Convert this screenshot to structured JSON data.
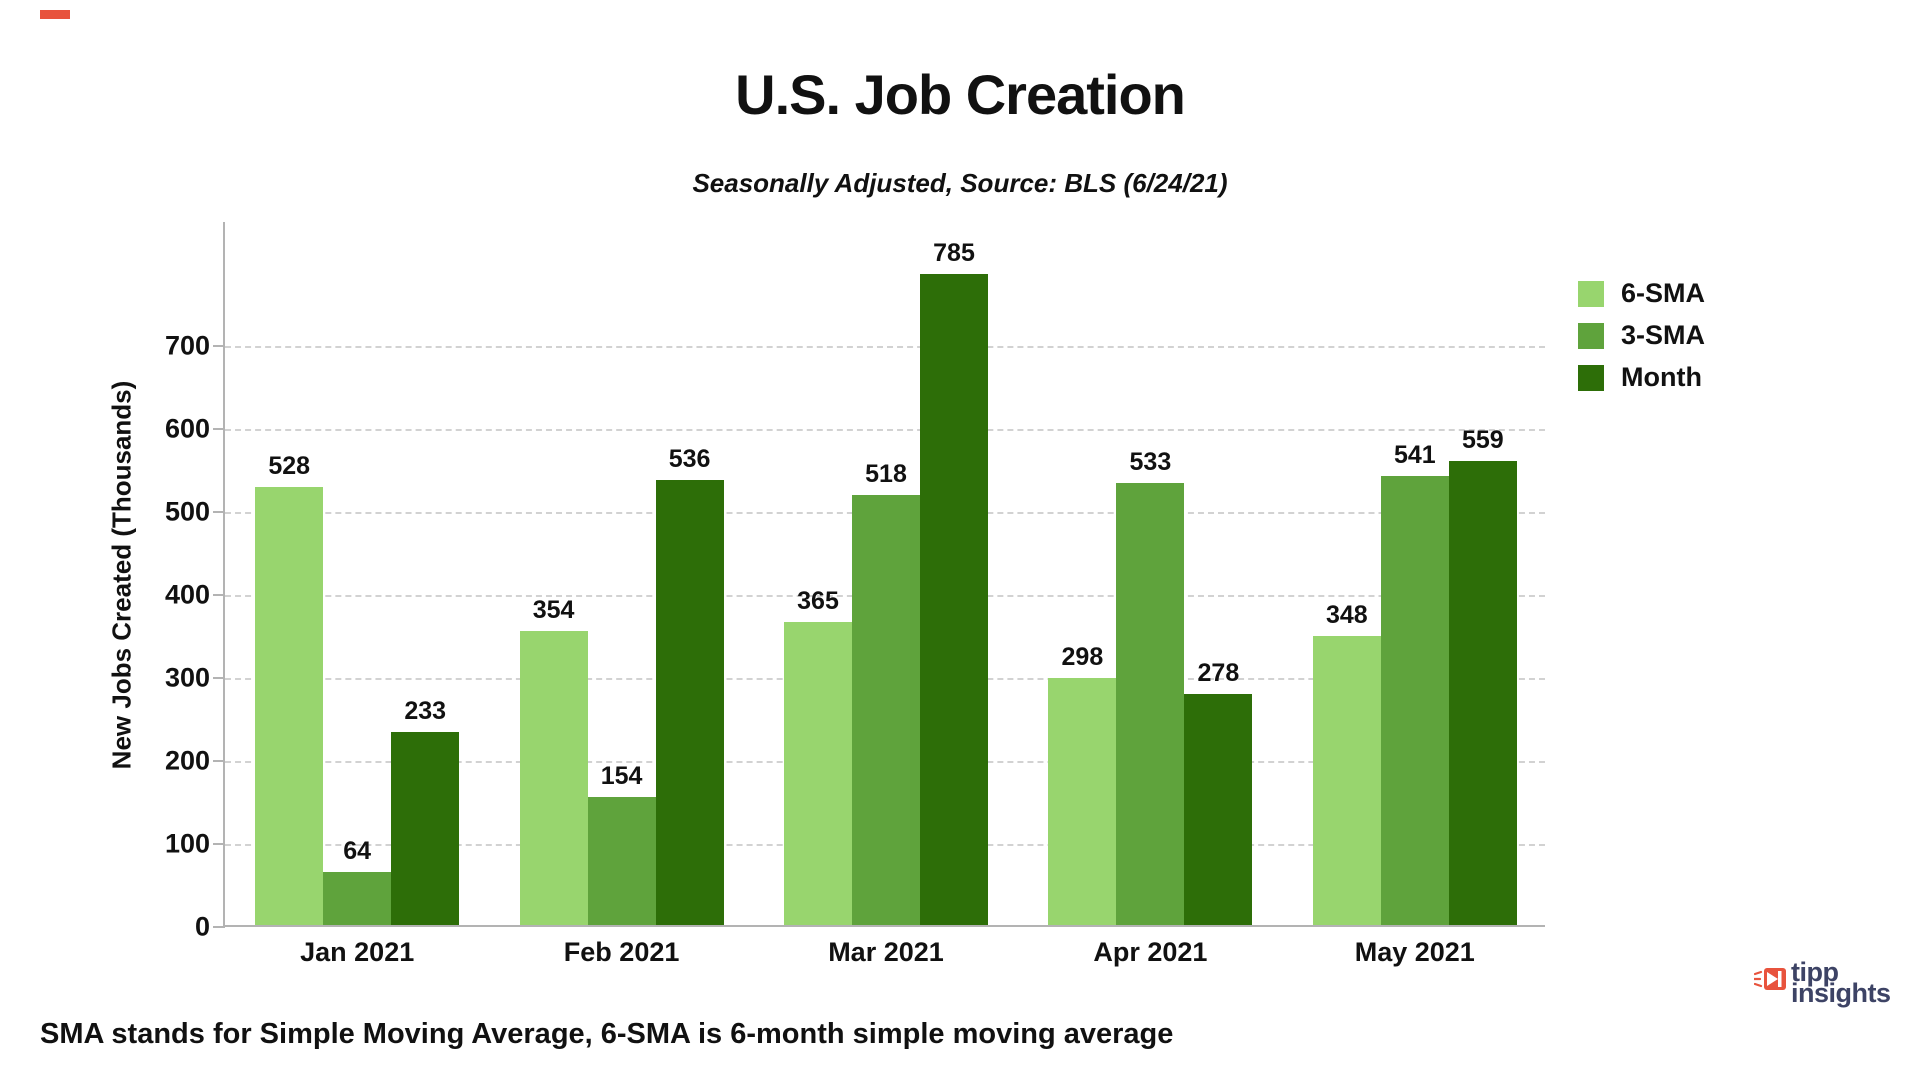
{
  "header": {
    "title": "U.S. Job Creation",
    "subtitle": "Seasonally Adjusted, Source: BLS (6/24/21)"
  },
  "footer": {
    "note": "SMA stands for Simple Moving Average, 6-SMA is 6-month simple moving average"
  },
  "branding": {
    "logo_line1": "tipp",
    "logo_line2": "insights",
    "navy": "#3d4365",
    "red": "#e8533d"
  },
  "chart_data": {
    "type": "bar",
    "title": "U.S. Job Creation",
    "subtitle": "Seasonally Adjusted, Source: BLS (6/24/21)",
    "categories": [
      "Jan 2021",
      "Feb 2021",
      "Mar 2021",
      "Apr 2021",
      "May 2021"
    ],
    "series": [
      {
        "name": "6-SMA",
        "color": "#98d56e",
        "values": [
          528,
          354,
          365,
          298,
          348
        ]
      },
      {
        "name": "3-SMA",
        "color": "#5fa33c",
        "values": [
          64,
          154,
          518,
          533,
          541
        ]
      },
      {
        "name": "Month",
        "color": "#2d6e08",
        "values": [
          233,
          536,
          785,
          278,
          559
        ]
      }
    ],
    "ylabel": "New Jobs Created (Thousands)",
    "yticks": [
      0,
      100,
      200,
      300,
      400,
      500,
      600,
      700
    ],
    "ylim": [
      0,
      850
    ],
    "grid": "horizontal-dashed",
    "legend_position": "top-right",
    "value_labels": true
  }
}
